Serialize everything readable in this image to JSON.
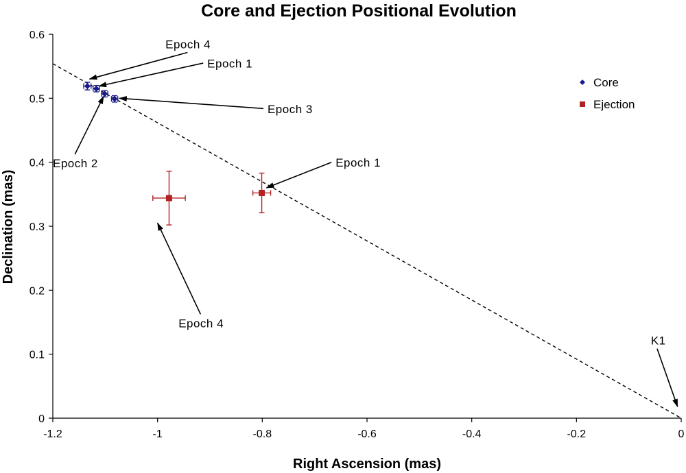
{
  "chart_data": {
    "type": "scatter",
    "title": "Core and Ejection Positional Evolution",
    "xlabel": "Right Ascension (mas)",
    "ylabel": "Declination (mas)",
    "xlim": [
      -1.2,
      0
    ],
    "ylim": [
      0,
      0.6
    ],
    "xticks": [
      "-1.2",
      "-1",
      "-0.8",
      "-0.6",
      "-0.4",
      "-0.2",
      "0"
    ],
    "yticks": [
      "0",
      "0.1",
      "0.2",
      "0.3",
      "0.4",
      "0.5",
      "0.6"
    ],
    "grid": false,
    "legend_position": "top-right",
    "series": [
      {
        "name": "Core",
        "marker": "diamond",
        "color": "#1a1a8c",
        "points": [
          {
            "x": -1.134,
            "y": 0.519,
            "xerr": 0.007,
            "yerr": 0.006
          },
          {
            "x": -1.117,
            "y": 0.515,
            "xerr": 0.006,
            "yerr": 0.005
          },
          {
            "x": -1.101,
            "y": 0.507,
            "xerr": 0.006,
            "yerr": 0.005
          },
          {
            "x": -1.082,
            "y": 0.499,
            "xerr": 0.006,
            "yerr": 0.005
          }
        ]
      },
      {
        "name": "Ejection",
        "marker": "square",
        "color": "#b22222",
        "points": [
          {
            "x": -0.978,
            "y": 0.344,
            "xerr": 0.031,
            "yerr": 0.042
          },
          {
            "x": -0.801,
            "y": 0.352,
            "xerr": 0.017,
            "yerr": 0.031
          }
        ]
      }
    ],
    "trend_line": {
      "x1": -1.2,
      "y1": 0.554,
      "x2": 0,
      "y2": 0,
      "style": "dashed"
    },
    "annotations": [
      {
        "text": "Epoch 4",
        "label_x": -0.985,
        "label_y": 0.578,
        "tip_x": -1.13,
        "tip_y": 0.53
      },
      {
        "text": "Epoch 1",
        "label_x": -0.905,
        "label_y": 0.548,
        "tip_x": -1.112,
        "tip_y": 0.519
      },
      {
        "text": "Epoch 3",
        "label_x": -0.79,
        "label_y": 0.477,
        "tip_x": -1.073,
        "tip_y": 0.5
      },
      {
        "text": "Epoch 2",
        "label_x": -1.2,
        "label_y": 0.392,
        "tip_x": -1.103,
        "tip_y": 0.503
      },
      {
        "text": "Epoch 1",
        "label_x": -0.66,
        "label_y": 0.393,
        "tip_x": -0.792,
        "tip_y": 0.36
      },
      {
        "text": "Epoch 4",
        "label_x": -0.96,
        "label_y": 0.142,
        "tip_x": -1.0,
        "tip_y": 0.305
      },
      {
        "text": "K1",
        "label_x": -0.058,
        "label_y": 0.115,
        "tip_x": -0.007,
        "tip_y": 0.018
      }
    ]
  }
}
